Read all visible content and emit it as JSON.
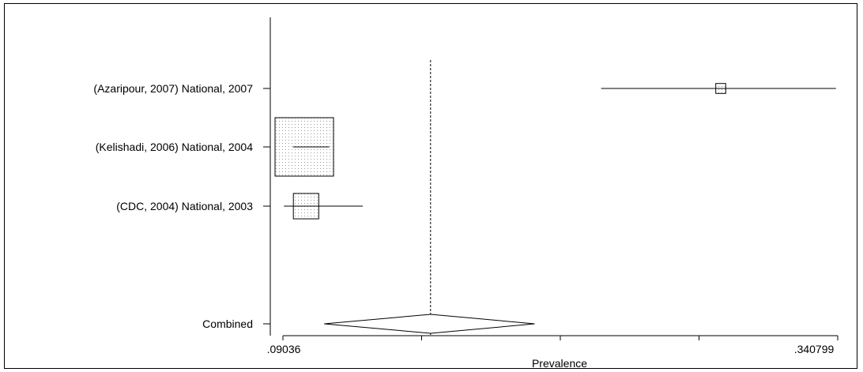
{
  "chart_data": {
    "type": "forest",
    "xlabel": "Prevalence",
    "x_tick_labels": [
      ".09036",
      ".340799"
    ],
    "xlim": [
      0.09036,
      0.340799
    ],
    "x_ticks": [
      0.09036,
      0.15297,
      0.21558,
      0.27819,
      0.340799
    ],
    "reference_line": 0.157,
    "studies": [
      {
        "label": "(Azaripour, 2007) National, 2007",
        "estimate": 0.288,
        "lower": 0.234,
        "upper": 0.34,
        "weight": 0.02
      },
      {
        "label": "(Kelishadi, 2006) National, 2004",
        "estimate": 0.1,
        "lower": 0.0949,
        "upper": 0.1113,
        "weight": 0.69
      },
      {
        "label": "(CDC, 2004) National, 2003",
        "estimate": 0.1008,
        "lower": 0.0908,
        "upper": 0.1264,
        "weight": 0.13
      }
    ],
    "combined": {
      "label": "Combined",
      "estimate": 0.157,
      "lower": 0.109,
      "upper": 0.204
    }
  }
}
